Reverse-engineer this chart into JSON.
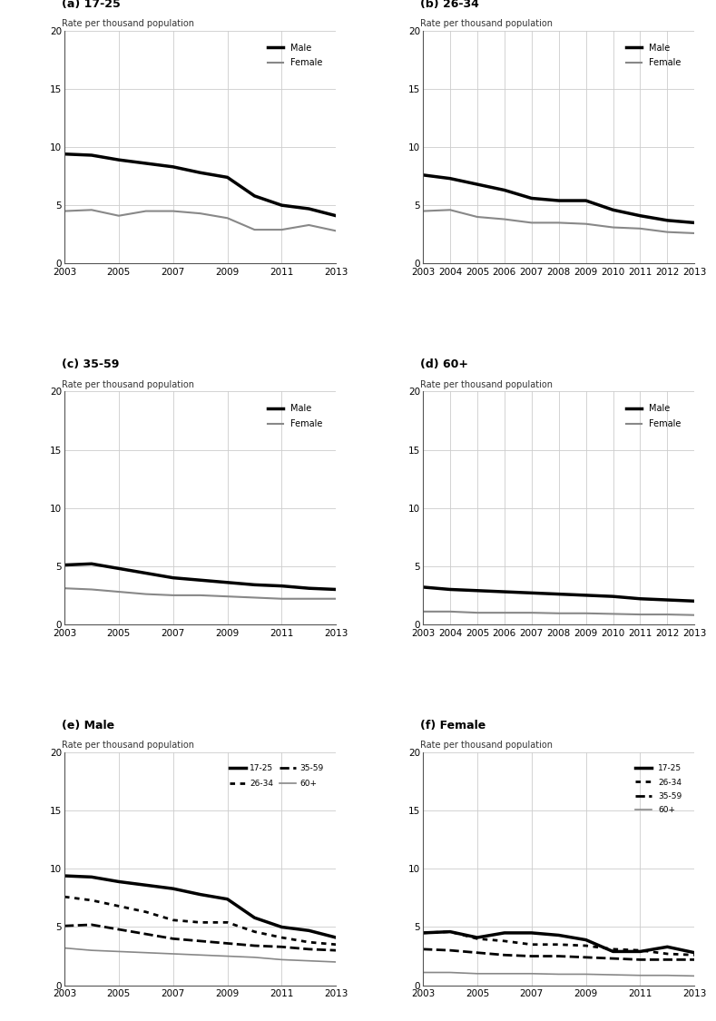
{
  "years": [
    2003,
    2004,
    2005,
    2006,
    2007,
    2008,
    2009,
    2010,
    2011,
    2012,
    2013
  ],
  "a_male": [
    9.4,
    9.3,
    8.9,
    8.6,
    8.3,
    7.8,
    7.4,
    5.8,
    5.0,
    4.7,
    4.1
  ],
  "a_female": [
    4.5,
    4.6,
    4.1,
    4.5,
    4.5,
    4.3,
    3.9,
    2.9,
    2.9,
    3.3,
    2.8
  ],
  "b_male": [
    7.6,
    7.3,
    6.8,
    6.3,
    5.6,
    5.4,
    5.4,
    4.6,
    4.1,
    3.7,
    3.5
  ],
  "b_female": [
    4.5,
    4.6,
    4.0,
    3.8,
    3.5,
    3.5,
    3.4,
    3.1,
    3.0,
    2.7,
    2.6
  ],
  "c_male": [
    5.1,
    5.2,
    4.8,
    4.4,
    4.0,
    3.8,
    3.6,
    3.4,
    3.3,
    3.1,
    3.0
  ],
  "c_female": [
    3.1,
    3.0,
    2.8,
    2.6,
    2.5,
    2.5,
    2.4,
    2.3,
    2.2,
    2.2,
    2.2
  ],
  "d_male": [
    3.2,
    3.0,
    2.9,
    2.8,
    2.7,
    2.6,
    2.5,
    2.4,
    2.2,
    2.1,
    2.0
  ],
  "d_female": [
    1.1,
    1.1,
    1.0,
    1.0,
    1.0,
    0.95,
    0.95,
    0.9,
    0.85,
    0.85,
    0.8
  ],
  "e_17_25": [
    9.4,
    9.3,
    8.9,
    8.6,
    8.3,
    7.8,
    7.4,
    5.8,
    5.0,
    4.7,
    4.1
  ],
  "e_26_34": [
    7.6,
    7.3,
    6.8,
    6.3,
    5.6,
    5.4,
    5.4,
    4.6,
    4.1,
    3.7,
    3.5
  ],
  "e_35_59": [
    5.1,
    5.2,
    4.8,
    4.4,
    4.0,
    3.8,
    3.6,
    3.4,
    3.3,
    3.1,
    3.0
  ],
  "e_60plus": [
    3.2,
    3.0,
    2.9,
    2.8,
    2.7,
    2.6,
    2.5,
    2.4,
    2.2,
    2.1,
    2.0
  ],
  "f_17_25": [
    4.5,
    4.6,
    4.1,
    4.5,
    4.5,
    4.3,
    3.9,
    2.9,
    2.9,
    3.3,
    2.8
  ],
  "f_26_34": [
    4.5,
    4.6,
    4.0,
    3.8,
    3.5,
    3.5,
    3.4,
    3.1,
    3.0,
    2.7,
    2.6
  ],
  "f_35_59": [
    3.1,
    3.0,
    2.8,
    2.6,
    2.5,
    2.5,
    2.4,
    2.3,
    2.2,
    2.2,
    2.2
  ],
  "f_60plus": [
    1.1,
    1.1,
    1.0,
    1.0,
    1.0,
    0.95,
    0.95,
    0.9,
    0.85,
    0.85,
    0.8
  ],
  "panel_labels": [
    "(a) 17-25",
    "(b) 26-34",
    "(c) 35-59",
    "(d) 60+",
    "(e) Male",
    "(f) Female"
  ],
  "ylabel": "Rate per thousand population",
  "ylim": [
    0,
    20
  ],
  "yticks": [
    0,
    5,
    10,
    15,
    20
  ],
  "black": "#000000",
  "gray": "#888888",
  "grid_color": "#cccccc",
  "bg": "#ffffff"
}
